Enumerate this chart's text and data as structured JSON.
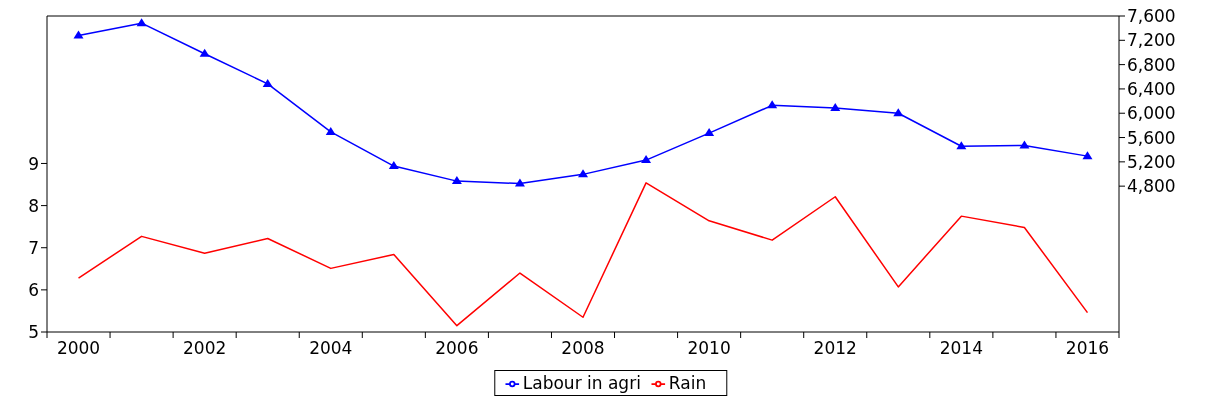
{
  "chart_data": {
    "type": "line",
    "categories": [
      "2000",
      null,
      "2002",
      null,
      "2004",
      null,
      "2006",
      null,
      "2008",
      null,
      "2010",
      null,
      "2012",
      null,
      "2014",
      null,
      "2016"
    ],
    "series": [
      {
        "name": "Labour in agri",
        "color": "#0000ff",
        "axis": "y2",
        "marker": "triangle",
        "values": [
          7280,
          7482,
          6979,
          6483,
          5693,
          5131,
          4883,
          4843,
          4994,
          5229,
          5673,
          6130,
          6085,
          6000,
          5457,
          5470,
          5294
        ]
      },
      {
        "name": "Rain",
        "color": "#ff0000",
        "axis": "y",
        "marker": "none",
        "values": [
          6.28,
          7.27,
          6.87,
          7.22,
          6.51,
          6.84,
          5.15,
          6.4,
          5.35,
          8.54,
          7.64,
          7.18,
          8.21,
          6.07,
          7.75,
          7.48,
          5.46
        ]
      }
    ],
    "ylim": [
      5,
      12.5
    ],
    "yticks": [
      5,
      6,
      7,
      8,
      9
    ],
    "y2lim": [
      2400,
      7600
    ],
    "y2ticks": [
      {
        "value": 4800,
        "label": "4,800"
      },
      {
        "value": 5200,
        "label": "5,200"
      },
      {
        "value": 5600,
        "label": "5,600"
      },
      {
        "value": 6000,
        "label": "6,000"
      },
      {
        "value": 6400,
        "label": "6,400"
      },
      {
        "value": 6800,
        "label": "6,800"
      },
      {
        "value": 7200,
        "label": "7,200"
      },
      {
        "value": 7600,
        "label": "7,600"
      }
    ],
    "legend": "bottom"
  }
}
